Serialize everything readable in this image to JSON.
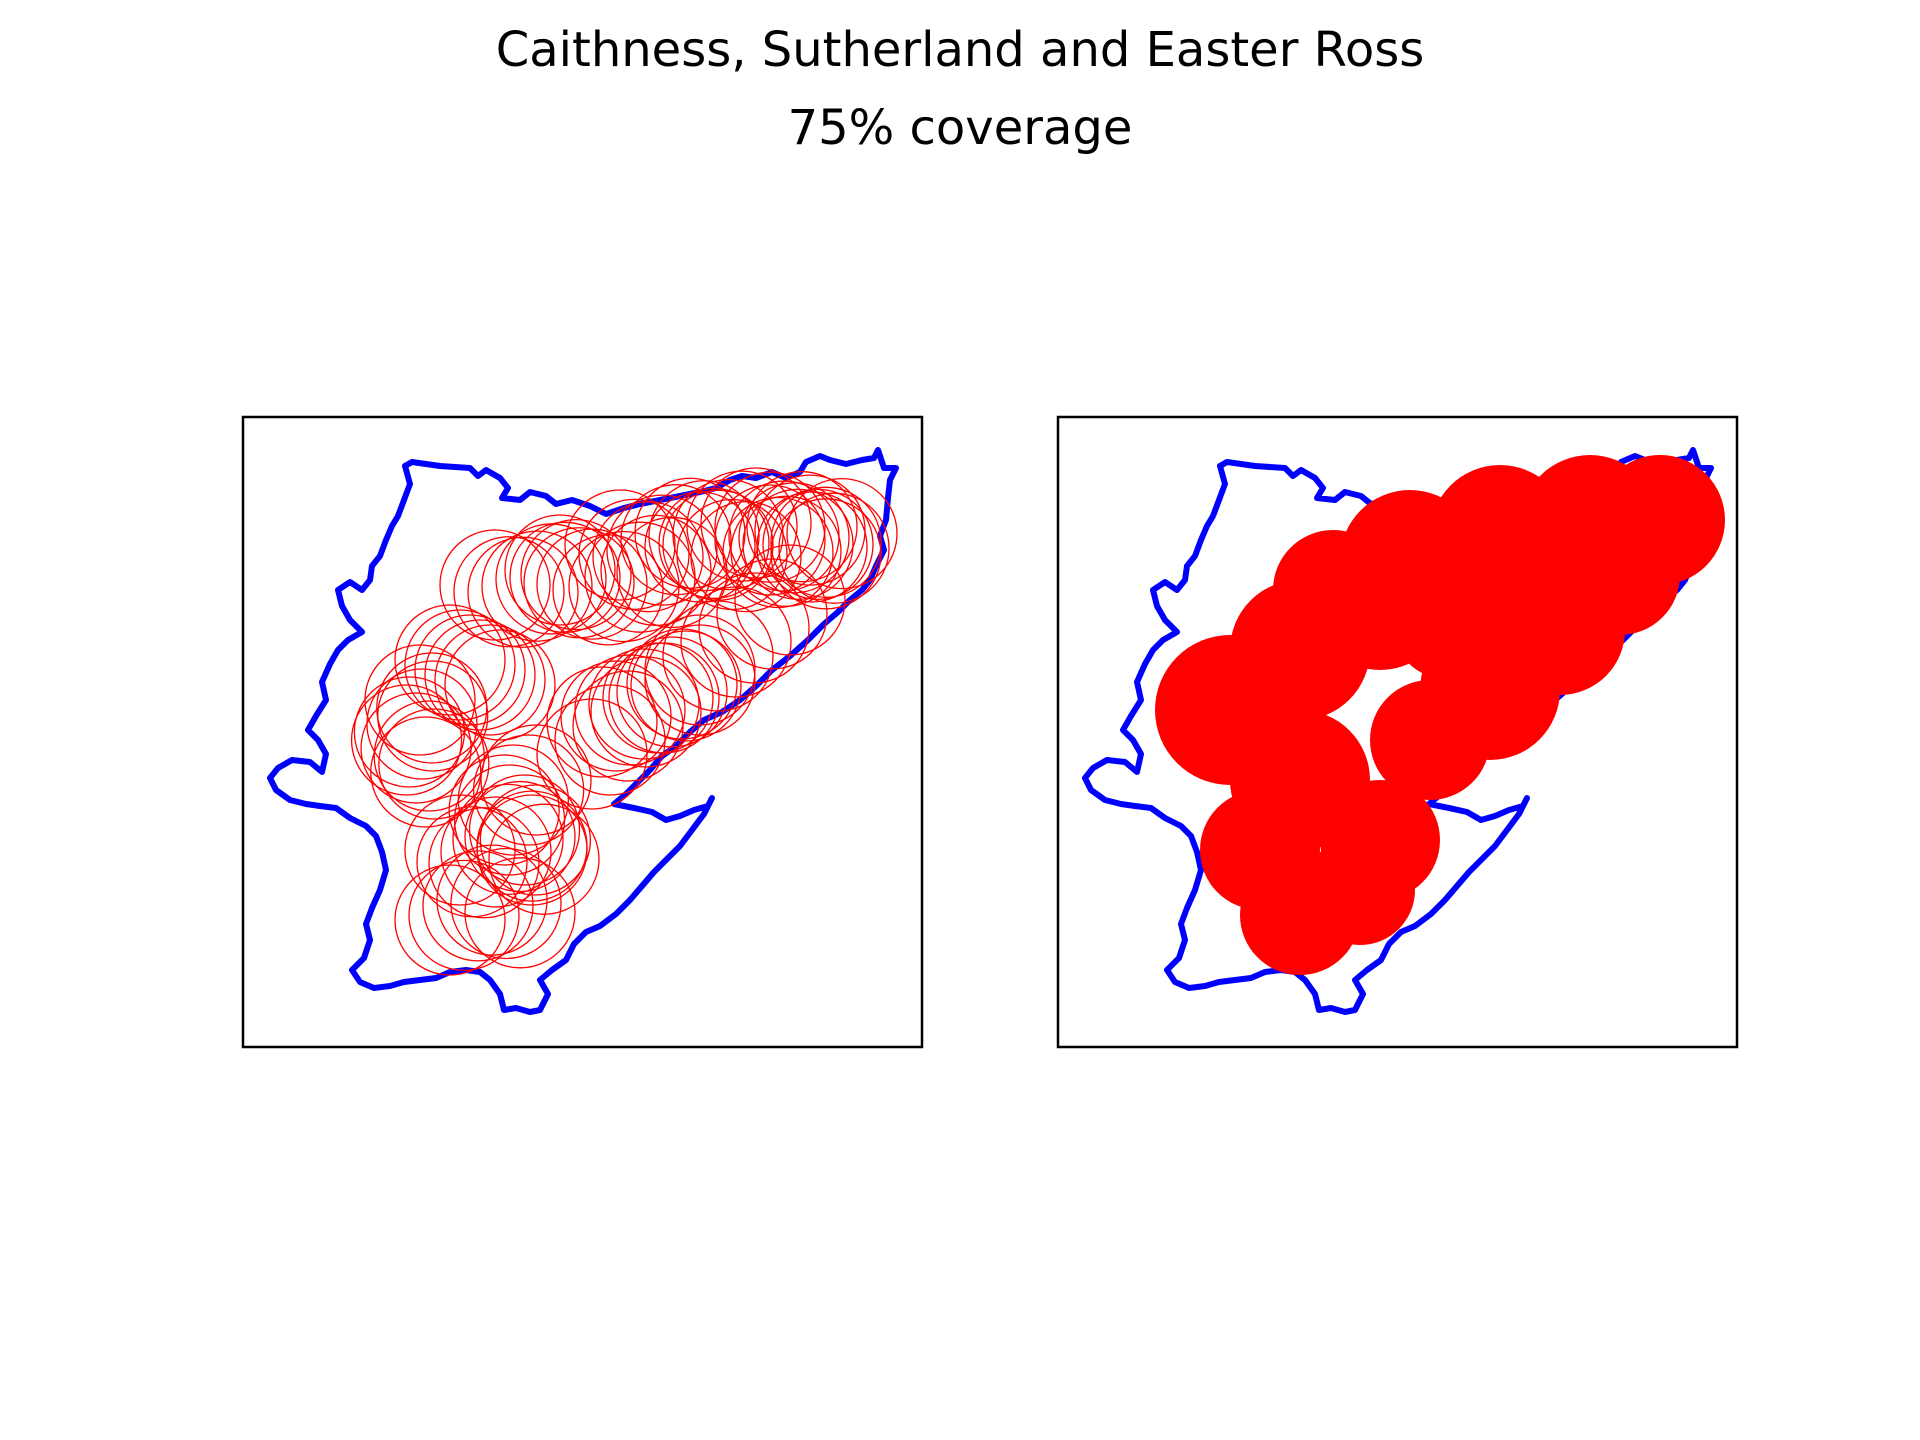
{
  "title": "Caithness, Sutherland and Easter Ross",
  "subtitle": "75% coverage",
  "colors": {
    "boundary": "#0000ff",
    "coverage": "#ff0000",
    "frame": "#000000",
    "background": "#ffffff"
  },
  "panels": [
    {
      "name": "coverage-circles-outline",
      "style": "outline"
    },
    {
      "name": "coverage-circles-filled",
      "style": "filled"
    }
  ]
}
